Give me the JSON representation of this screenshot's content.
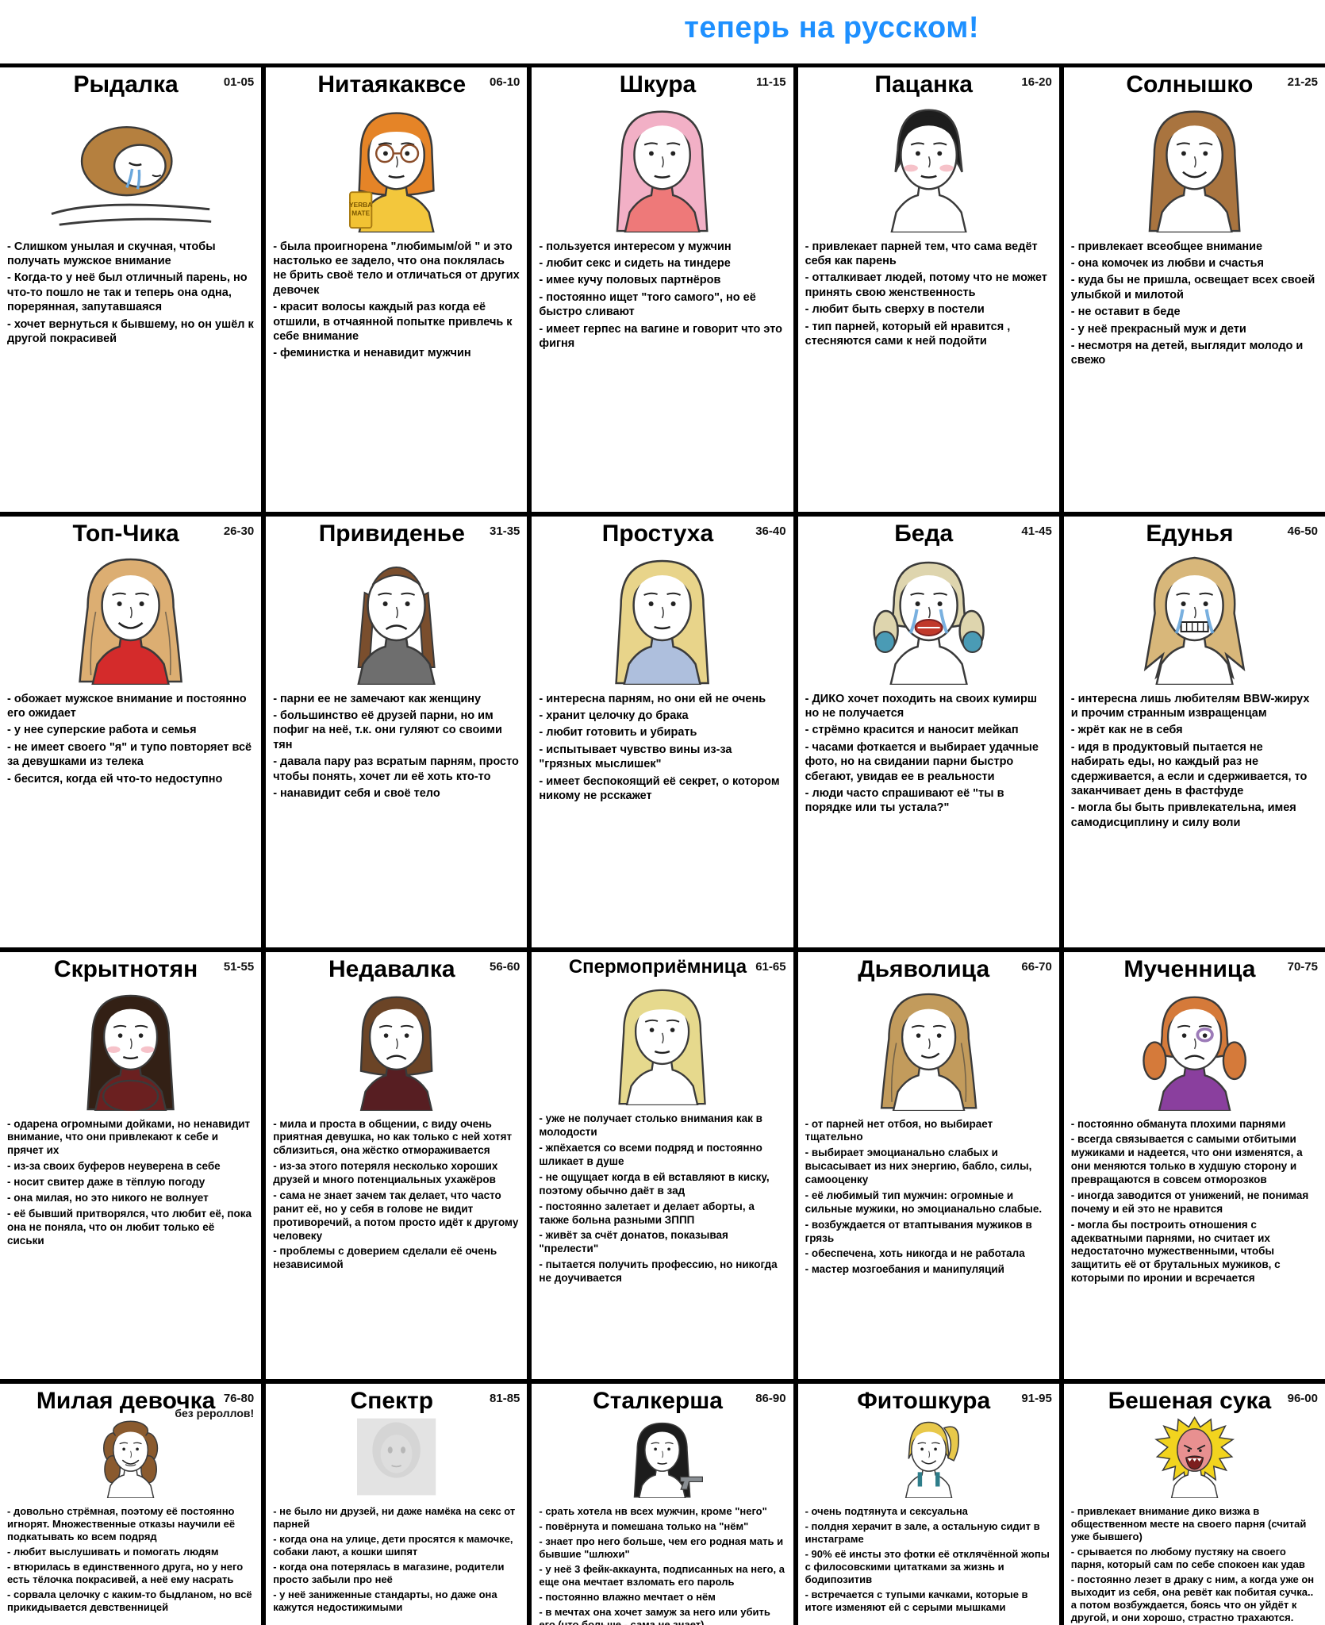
{
  "header": {
    "tagline": "теперь на русском!",
    "tagline_color": "#1e90ff"
  },
  "cells": [
    {
      "title": "Рыдалка",
      "range": "01-05",
      "range_note": "",
      "portrait": {
        "name": "crying-girl-in-bed",
        "style": "lying",
        "hair": "#b5803f",
        "shirt": "#ffffff",
        "expr": "cry"
      },
      "traits": [
        "- Слишком унылая и скучная, чтобы получать мужское внимание",
        "- Когда-то у неё был отличный парень, но что-то пошло не так и теперь она одна, порерянная, запутавшаяся",
        "- хочет вернуться к бывшему, но он ушёл к другой покрасивей"
      ]
    },
    {
      "title": "Нитаякаквсе",
      "range": "06-10",
      "range_note": "",
      "portrait": {
        "name": "orange-bob-girl-with-yerba-mate",
        "style": "bob-bangs",
        "hair": "#e58427",
        "shirt": "#f3c73c",
        "expr": "neutral",
        "glasses": true,
        "extra": "can"
      },
      "traits": [
        "- была проигнорена \"любимым/ой \" и это настолько ее задело, что она поклялась не брить своё тело и отличаться от других девочек",
        "- красит волосы каждый раз когда её отшили, в отчаянной попытке привлечь к себе внимание",
        "- феминистка и ненавидит мужчин"
      ]
    },
    {
      "title": "Шкура",
      "range": "11-15",
      "range_note": "",
      "portrait": {
        "name": "pink-hair-girl",
        "style": "long",
        "hair": "#f2b0c6",
        "shirt": "#ee7979",
        "expr": "neutral"
      },
      "traits": [
        "- пользуется интересом у мужчин",
        "- любит секс и сидеть на тиндере",
        "- имее кучу половых партнёров",
        "- постоянно ищет \"того самого\", но её быстро сливают",
        "- имеет герпес на вагине и говорит что это фигня"
      ]
    },
    {
      "title": "Пацанка",
      "range": "16-20",
      "range_note": "",
      "portrait": {
        "name": "short-black-hair-tomboy",
        "style": "short",
        "hair": "#1d1d1d",
        "shirt": "#ffffff",
        "expr": "neutral",
        "blush": true
      },
      "traits": [
        "- привлекает парней тем, что сама ведёт себя как парень",
        "- отталкивает людей, потому что не может принять свою женственность",
        "- любит быть сверху в постели",
        "- тип парней, который ей нравится , стесняются сами к ней подойти"
      ]
    },
    {
      "title": "Солнышко",
      "range": "21-25",
      "range_note": "",
      "portrait": {
        "name": "smiling-sunny-girl",
        "style": "long",
        "hair": "#a9743f",
        "shirt": "#ffffff",
        "expr": "smile"
      },
      "traits": [
        "- привлекает всеобщее внимание",
        "- она комочек из любви и счастья",
        "- куда бы не пришла, освещает всех своей улыбкой и милотой",
        "- не оставит в беде",
        "- у неё прекрасный муж и дети",
        "- несмотря на детей, выглядит молодо и свежо"
      ]
    },
    {
      "title": "Топ-Чика",
      "range": "26-30",
      "range_note": "",
      "portrait": {
        "name": "top-chick-red-sweater",
        "style": "long-wavy",
        "hair": "#dcae72",
        "shirt": "#d42b2b",
        "expr": "smile"
      },
      "traits": [
        "- обожает мужское внимание и постоянно его ожидает",
        "- у нее суперские работа и семья",
        "- не имеет своего \"я\" и тупо повторяет всё за девушками из телека",
        "- бесится, когда ей что-то недоступно"
      ]
    },
    {
      "title": "Привиденье",
      "range": "31-35",
      "range_note": "",
      "portrait": {
        "name": "invisible-girl-gray-sweater",
        "style": "receding",
        "hair": "#7a4e2d",
        "shirt": "#6e6e6e",
        "expr": "sad"
      },
      "traits": [
        "- парни ее не замечают как женщину",
        "- большинство её друзей парни, но им пофиг на неё, т.к. они гуляют со своими тян",
        "- давала пару раз всратым парням, просто чтобы понять, хочет ли её хоть кто-то",
        "- нанавидит себя и своё тело"
      ]
    },
    {
      "title": "Простуха",
      "range": "36-40",
      "range_note": "",
      "portrait": {
        "name": "plain-blonde-girl-floral-dress",
        "style": "long",
        "hair": "#e8d48a",
        "shirt": "#aebfdd",
        "expr": "neutral"
      },
      "traits": [
        "- интересна парням, но они ей не очень",
        "- хранит целочку до брака",
        "- любит готовить и убирать",
        "- испытывает чувство вины из-за \"грязных мыслишек\"",
        "- имеет беспокоящий её секрет, о котором никому не рсскажет"
      ]
    },
    {
      "title": "Беда",
      "range": "41-45",
      "range_note": "",
      "portrait": {
        "name": "crying-harley-pigtails-girl",
        "style": "pigtails",
        "hair": "#ded5ae",
        "hair2": "#4a9bb5",
        "shirt": "#ffffff",
        "expr": "redcry"
      },
      "traits": [
        "- ДИКО хочет походить на своих кумирш но не получается",
        "- стрёмно красится и наносит мейкап",
        "- часами фоткается и выбирает удачные фото, но на свидании парни быстро сбегают, увидав ее в реальности",
        "- люди часто спрашивают её \"ты в порядке или ты устала?\""
      ]
    },
    {
      "title": "Едунья",
      "range": "46-50",
      "range_note": "",
      "portrait": {
        "name": "crying-gritting-fat-girl",
        "style": "messy",
        "hair": "#d8b77a",
        "shirt": "#ffffff",
        "expr": "gritcry"
      },
      "traits": [
        "- интересна лишь любителям BBW-жирух и прочим странным извращенцам",
        "- жрёт как не в себя",
        "- идя в продуктовый пытается не набирать еды, но каждый раз не сдерживается, а если и сдерживается, то заканчивает день в фастфуде",
        "- могла бы быть привлекательна, имея самодисциплину и силу воли"
      ]
    },
    {
      "title": "Скрытнотян",
      "range": "51-55",
      "range_note": "",
      "portrait": {
        "name": "shy-busty-girl-sweater",
        "style": "long",
        "hair": "#332015",
        "shirt": "#6b2020",
        "expr": "neutral",
        "blush": true,
        "chest": true
      },
      "traits": [
        "- одарена огромными дойками, но ненавидит внимание, что они привлекают к себе и прячет их",
        "- из-за своих буферов неуверена в себе",
        "- носит свитер даже в тёплую погоду",
        "- она милая, но это никого не волнует",
        "- её бывший притворялся, что любит её, пока она не поняла, что он любит только её сиськи"
      ]
    },
    {
      "title": "Недавалка",
      "range": "56-60",
      "range_note": "",
      "portrait": {
        "name": "frowning-bob-girl",
        "style": "bob",
        "hair": "#6b4426",
        "shirt": "#571e22",
        "expr": "sad"
      },
      "traits": [
        "- мила и проста в общении, с виду очень приятная девушка, но как только с ней хотят сблизиться, она жёстко отмораживается",
        "- из-за этого потеряля несколько хороших друзей и много потенциальных ухажёров",
        "- сама не знает зачем так делает, что часто ранит её, но у себя в голове не видит противоречий, а потом просто идёт к другому человеку",
        "- проблемы с доверием сделали её очень независимой"
      ]
    },
    {
      "title": "Спермоприёмница",
      "range": "61-65",
      "range_note": "",
      "portrait": {
        "name": "blonde-bangs-girl",
        "style": "long-bangs",
        "hair": "#e6d98d",
        "shirt": "#ffffff",
        "expr": "neutral"
      },
      "traits": [
        "- уже не получает столько внимания как в молодости",
        "- жпёхается со всеми подряд и постоянно шликает в душе",
        "- не ощущает когда в ей вставляют в киску, поэтому обычно даёт в зад",
        "- постоянно залетает и делает аборты, а также больна разными ЗППП",
        "- живёт за счёт донатов, показывая \"прелести\"",
        "- пытается получить профессию, но никогда не доучивается"
      ]
    },
    {
      "title": "Дьяволица",
      "range": "66-70",
      "range_note": "",
      "portrait": {
        "name": "smirking-femme-fatale",
        "style": "long-wavy",
        "hair": "#c29b5c",
        "shirt": "#ffffff",
        "expr": "smirk"
      },
      "traits": [
        "- от парней нет отбоя, но выбирает тщательно",
        "- выбирает эмоцианально слабых и высасывает из них энергию, бабло, силы, самооценку",
        "- её любимый тип мужчин: огромные и сильные мужики, но эмоцианально слабые.",
        "- возбуждается от втаптывания мужиков в грязь",
        "- обеспечена, хоть никогда и не работала",
        "- мастер мозгоебания и манипуляций"
      ]
    },
    {
      "title": "Мученница",
      "range": "70-75",
      "range_note": "",
      "portrait": {
        "name": "bruised-pigtails-girl-purple-top",
        "style": "pigtails",
        "hair": "#d57a3a",
        "shirt": "#8a3f9e",
        "expr": "sad",
        "bruise": true
      },
      "traits": [
        "- постоянно обманута плохими парнями",
        "- всегда связывается с самыми отбитыми мужиками и надеется, что они изменятся, а они меняются только в худшую сторону и превращаются в совсем отморозков",
        "- иногда заводится от унижений, не понимая почему и ей это не нравится",
        "- могла бы построить отношения с адекватными парнями, но считает их недостаточно мужественными, чтобы защитить её от брутальных мужиков, с которыми по иронии и всречается"
      ]
    },
    {
      "title": "Милая девочка",
      "range": "76-80",
      "range_note": "без рероллов!",
      "portrait": {
        "name": "goofy-curly-cute-girl",
        "style": "curly",
        "hair": "#8a5a2e",
        "shirt": "#ffffff",
        "expr": "goofy"
      },
      "traits": [
        "- довольно стрёмная, поэтому её постоянно игнорят. Множественные отказы научили её подкатывать ко всем подряд",
        "- любит выслушивать и помогать людям",
        "- втюрилась в единственного друга, но у него есть тёлочка покрасивей, а неё ему насрать",
        "- сорвала целочку с каким-то быдланом, но всё прикидывается девственницей"
      ]
    },
    {
      "title": "Спектр",
      "range": "81-85",
      "range_note": "",
      "portrait": {
        "name": "gray-ghost-girl",
        "style": "ghost",
        "hair": "#9a9a9a",
        "shirt": "#bdbdbd",
        "expr": "blank"
      },
      "traits": [
        "- не было ни друзей, ни даже намёка на секс от парней",
        "- когда она на улице, дети просятся к мамочке, собаки лают, а кошки шипят",
        "- когда она потерялась в магазине, родители просто забыли про неё",
        "- у неё заниженные стандарты, но даже она кажутся недостижимыми"
      ]
    },
    {
      "title": "Сталкерша",
      "range": "86-90",
      "range_note": "",
      "portrait": {
        "name": "black-hair-girl-with-revolver",
        "style": "long",
        "hair": "#1c1c1c",
        "shirt": "#ffffff",
        "expr": "neutral",
        "extra": "gun"
      },
      "traits": [
        "- срать хотела нв всех мужчин, кроме \"него\"",
        "- повёрнута и помешана только на \"нём\"",
        "- знает про него больше, чем его родная мать и бывшие \"шлюхи\"",
        "- у неё 3 фейк-аккаунта, подписанных на него, а еще она мечтает взломать его пароль",
        "- постоянно влажно мечтает о нём",
        "- в мечтах она хочет замуж за него или убить его (что больше - сама не знает)"
      ]
    },
    {
      "title": "Фитошкура",
      "range": "91-95",
      "range_note": "",
      "portrait": {
        "name": "fit-blonde-ponytail-girl",
        "style": "ponytail",
        "hair": "#e8c84a",
        "shirt": "#ffffff",
        "expr": "smile",
        "straps": "#2e7d8a"
      },
      "traits": [
        "- очень подтянута и сексуальна",
        "- полдня херачит в зале, а остальную сидит в инстаграме",
        "- 90% её инсты это фотки   её отклячённой жопы с филосовскими цитатками за жизнь и бодипозитив",
        "- встречается с тупыми качками, которые в итоге изменяют ей с серыми мышками"
      ]
    },
    {
      "title": "Бешеная сука",
      "range": "96-00",
      "range_note": "",
      "portrait": {
        "name": "raging-yellow-hair-girl",
        "style": "wild",
        "hair": "#f2d41e",
        "shirt": "#ffffff",
        "skin": "#e89090",
        "expr": "rage"
      },
      "traits": [
        "- привлекает внимание дико визжа в общественном месте на своего парня (считай уже бывшего)",
        "- срывается по любому пустяку на своего парня, который сам по себе спокоен как удав",
        "- постоянно лезет в драку с ним, а когда уже он выходит из себя, она ревёт как побитая сучка.. а потом возбуждается, боясь что он уйдёт к другой, и они хорошо, страстно трахаются."
      ]
    }
  ]
}
